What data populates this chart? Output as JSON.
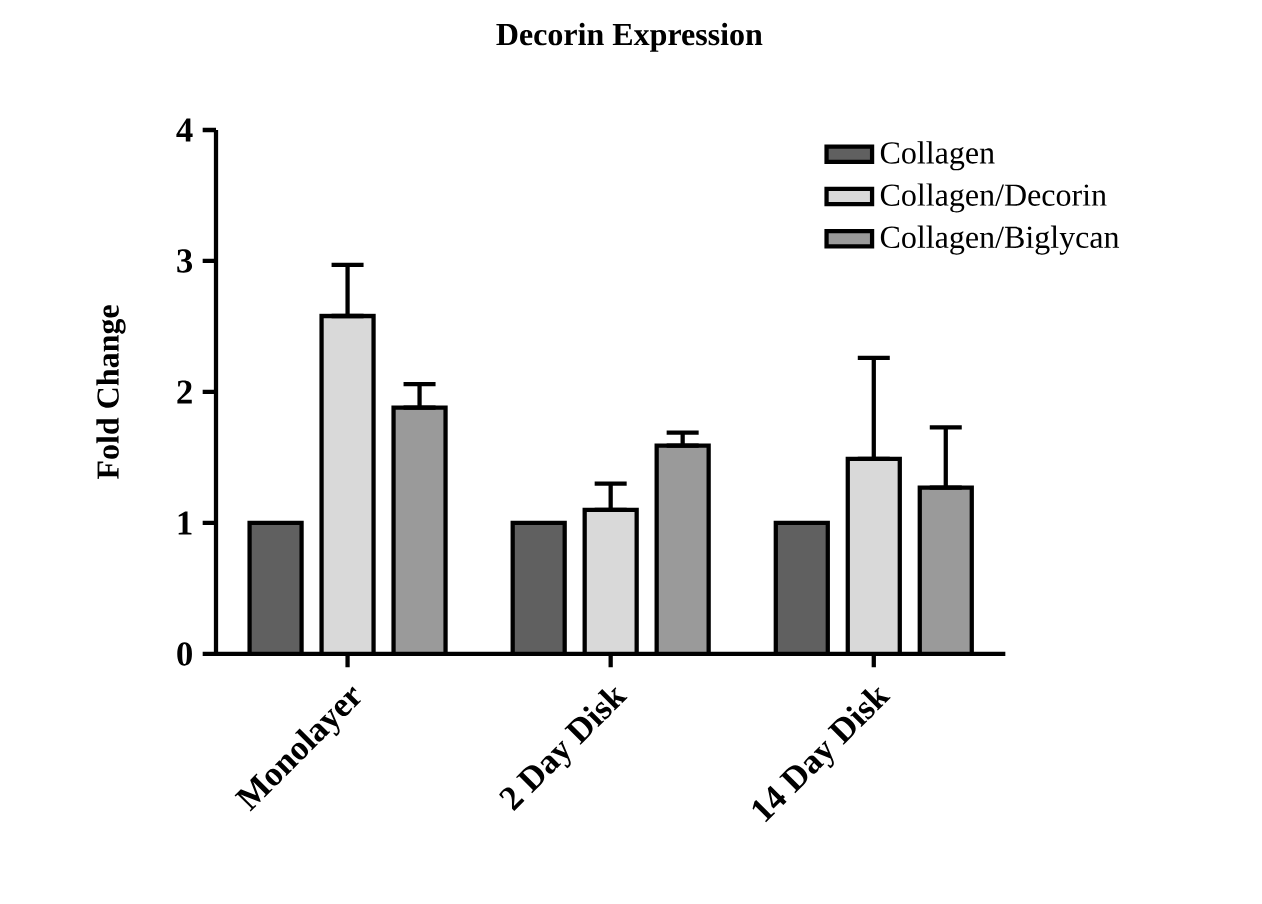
{
  "chart_data": {
    "type": "bar",
    "title": "Decorin Expression",
    "ylabel": "Fold Change",
    "categories": [
      "Monolayer",
      "2 Day Disk",
      "14 Day Disk"
    ],
    "series": [
      {
        "name": "Collagen",
        "color": "#606060",
        "values": [
          1,
          1,
          1
        ],
        "errors": [
          null,
          null,
          null
        ]
      },
      {
        "name": "Collagen/Decorin",
        "color": "#d9d9d9",
        "values": [
          2.58,
          1.1,
          1.49
        ],
        "errors": [
          [
            2.58,
            2.97
          ],
          [
            1.1,
            1.3
          ],
          [
            1.49,
            2.26
          ]
        ]
      },
      {
        "name": "Collagen/Biglycan",
        "color": "#9a9a9a",
        "values": [
          1.88,
          1.59,
          1.27
        ],
        "errors": [
          [
            1.88,
            2.06
          ],
          [
            1.59,
            1.69
          ],
          [
            1.27,
            1.73
          ]
        ]
      }
    ],
    "ylim": [
      0,
      4
    ],
    "yticks": [
      0,
      1,
      2,
      3,
      4
    ],
    "grid": false,
    "legend": "top right"
  }
}
